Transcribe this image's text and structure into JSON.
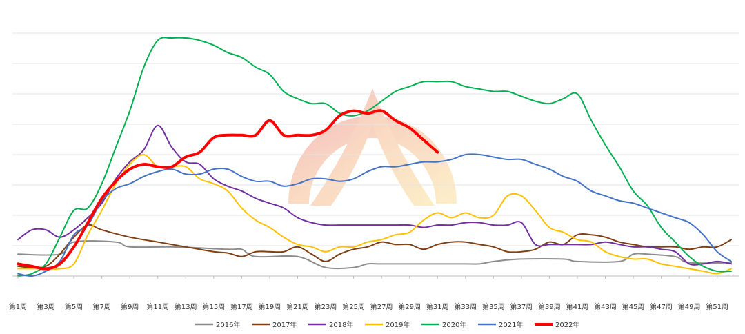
{
  "chart_data": {
    "type": "line",
    "title": "",
    "xlabel": "",
    "ylabel": "",
    "ylim": [
      0,
      100
    ],
    "grid": true,
    "legend_position": "bottom",
    "x_ticks": [
      "第1周",
      "第3周",
      "第5周",
      "第7周",
      "第9周",
      "第11周",
      "第13周",
      "第15周",
      "第17周",
      "第19周",
      "第21周",
      "第23周",
      "第25周",
      "第27周",
      "第29周",
      "第31周",
      "第33周",
      "第35周",
      "第37周",
      "第39周",
      "第41周",
      "第43周",
      "第45周",
      "第47周",
      "第49周",
      "第51周"
    ],
    "series": [
      {
        "name": "2016年",
        "color": "#8c8c8c",
        "width": 2,
        "x": [
          1,
          4,
          5,
          8,
          9,
          12,
          16,
          17,
          18,
          21,
          23,
          25,
          26,
          27,
          30,
          31,
          33,
          34,
          35,
          37,
          40,
          41,
          44,
          45,
          46,
          48,
          49,
          52
        ],
        "y": [
          9,
          9,
          14,
          14,
          12,
          12,
          11,
          11,
          8,
          8,
          3.5,
          3.5,
          5,
          5,
          5,
          5,
          5,
          5,
          6,
          7,
          7,
          6,
          6,
          9,
          9,
          8,
          5.5,
          5.5
        ]
      },
      {
        "name": "2017年",
        "color": "#7f3f13",
        "width": 2,
        "x": [
          1,
          2,
          3,
          4,
          5,
          6,
          7,
          9,
          11,
          13,
          15,
          16,
          17,
          18,
          19,
          20,
          21,
          22,
          23,
          24,
          25,
          26,
          27,
          28,
          29,
          30,
          31,
          32,
          33,
          34,
          35,
          36,
          37,
          38,
          39,
          40,
          41,
          42,
          43,
          44,
          45,
          46,
          47,
          48,
          49,
          50,
          51,
          52
        ],
        "y": [
          4,
          3.5,
          4,
          9,
          16,
          21,
          19,
          16,
          14,
          12,
          10,
          9.5,
          8,
          10,
          10,
          10,
          12,
          9,
          6,
          9,
          11,
          12,
          14,
          13,
          13,
          11,
          13,
          14,
          14,
          13,
          12,
          10,
          10,
          11,
          14,
          13,
          17,
          17,
          16,
          14,
          13,
          12,
          12,
          12,
          11,
          12,
          12,
          15
        ]
      },
      {
        "name": "2018年",
        "color": "#7030a0",
        "width": 2,
        "x": [
          1,
          2,
          3,
          4,
          5,
          6,
          7,
          8,
          9,
          10,
          11,
          12,
          13,
          14,
          15,
          16,
          17,
          18,
          19,
          20,
          21,
          22,
          23,
          24,
          25,
          26,
          27,
          28,
          29,
          30,
          31,
          32,
          33,
          34,
          35,
          36,
          37,
          38,
          39,
          40,
          41,
          42,
          43,
          44,
          45,
          46,
          47,
          48,
          49,
          50,
          51,
          52
        ],
        "y": [
          15,
          19,
          19,
          16,
          19,
          24,
          30,
          40,
          47,
          52,
          62,
          53,
          47,
          46,
          40,
          37,
          35,
          32,
          30,
          28,
          24,
          22,
          21,
          21,
          21,
          21,
          21,
          21,
          21,
          20,
          21,
          21,
          22,
          22,
          21,
          21,
          22,
          13,
          13,
          13,
          13,
          13,
          14,
          13,
          12,
          12,
          11,
          10,
          5,
          5,
          6,
          5
        ]
      },
      {
        "name": "2019年",
        "color": "#ffc000",
        "width": 2,
        "x": [
          1,
          2,
          3,
          4,
          5,
          6,
          7,
          8,
          9,
          10,
          11,
          12,
          13,
          14,
          15,
          16,
          17,
          18,
          19,
          20,
          21,
          22,
          23,
          24,
          25,
          26,
          27,
          28,
          29,
          30,
          31,
          32,
          33,
          34,
          35,
          36,
          37,
          38,
          39,
          40,
          41,
          42,
          43,
          44,
          45,
          46,
          47,
          48,
          49,
          50,
          51,
          52
        ],
        "y": [
          3,
          3,
          3,
          3,
          5,
          17,
          27,
          38,
          46,
          50,
          45,
          45,
          45,
          40,
          38,
          35,
          28,
          23,
          20,
          16,
          13,
          12,
          10,
          12,
          12,
          14,
          15,
          17,
          18,
          23,
          26,
          24,
          26,
          24,
          25,
          33,
          33,
          27,
          20,
          18,
          15,
          14,
          10,
          8,
          7,
          7,
          5,
          4,
          3,
          2,
          1,
          3
        ]
      },
      {
        "name": "2020年",
        "color": "#00b050",
        "width": 2,
        "x": [
          1,
          2,
          3,
          4,
          5,
          6,
          7,
          8,
          9,
          10,
          11,
          12,
          13,
          14,
          15,
          16,
          17,
          18,
          19,
          20,
          21,
          22,
          23,
          24,
          25,
          26,
          27,
          28,
          29,
          30,
          31,
          32,
          33,
          34,
          35,
          36,
          37,
          38,
          39,
          40,
          41,
          42,
          43,
          44,
          45,
          46,
          47,
          48,
          49,
          50,
          51,
          52
        ],
        "y": [
          0,
          1,
          5,
          16,
          27,
          28,
          38,
          53,
          68,
          86,
          97,
          98,
          98,
          97,
          95,
          92,
          90,
          86,
          83,
          76,
          73,
          71,
          71,
          67,
          66,
          68,
          72,
          76,
          78,
          80,
          80,
          80,
          78,
          77,
          76,
          76,
          74,
          72,
          71,
          73,
          75,
          64,
          54,
          45,
          35,
          29,
          20,
          14,
          8,
          4,
          2,
          2
        ]
      },
      {
        "name": "2021年",
        "color": "#4472c4",
        "width": 2,
        "x": [
          1,
          2,
          3,
          4,
          5,
          6,
          7,
          8,
          9,
          10,
          11,
          12,
          13,
          14,
          15,
          16,
          17,
          18,
          19,
          20,
          21,
          22,
          23,
          24,
          25,
          26,
          27,
          28,
          29,
          30,
          31,
          32,
          33,
          34,
          35,
          36,
          37,
          38,
          39,
          40,
          41,
          42,
          43,
          44,
          45,
          46,
          47,
          48,
          49,
          50,
          51,
          52
        ],
        "y": [
          1,
          0,
          2,
          6,
          17,
          21,
          31,
          36,
          38,
          41,
          43,
          44,
          42,
          42,
          44,
          44,
          41,
          39,
          39,
          37,
          38,
          40,
          40,
          39,
          40,
          43,
          45,
          45,
          46,
          47,
          47,
          48,
          50,
          50,
          49,
          48,
          48,
          46,
          44,
          41,
          39,
          35,
          33,
          31,
          30,
          28,
          26,
          24,
          22,
          17,
          10,
          6
        ]
      },
      {
        "name": "2022年",
        "color": "#ff0000",
        "width": 4,
        "x": [
          1,
          2,
          3,
          4,
          5,
          6,
          7,
          8,
          9,
          10,
          11,
          12,
          13,
          14,
          15,
          16,
          17,
          18,
          19,
          20,
          21,
          22,
          23,
          24,
          25,
          26,
          27,
          28,
          29,
          30,
          31
        ],
        "y": [
          5,
          4,
          3,
          5,
          12,
          22,
          32,
          39,
          44,
          46,
          45,
          45,
          49,
          51,
          57,
          58,
          58,
          58,
          64,
          58,
          58,
          58,
          60,
          66,
          68,
          67,
          68,
          64,
          61,
          56,
          51
        ]
      }
    ]
  }
}
